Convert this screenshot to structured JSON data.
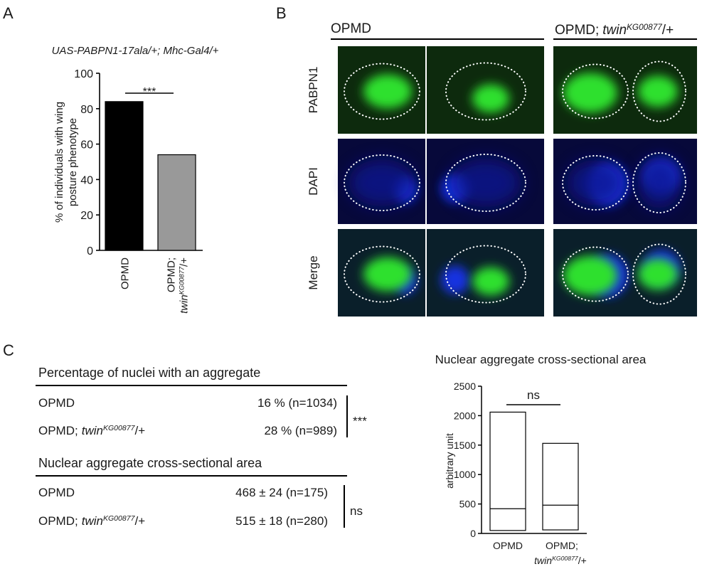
{
  "panels": {
    "a": "A",
    "b": "B",
    "c": "C"
  },
  "chart_data": [
    {
      "type": "bar",
      "title": "UAS-PABPN1-17ala/+; Mhc-Gal4/+",
      "y_label": [
        "% of individuals with wing",
        "posture phenotype"
      ],
      "categories": [
        [
          "OPMD"
        ],
        [
          "OPMD;",
          "twin",
          "KG00877",
          "/+"
        ]
      ],
      "values": [
        84,
        54
      ],
      "colors": [
        "#000000",
        "#999999"
      ],
      "ylim": [
        0,
        100
      ],
      "yticks": [
        0,
        20,
        40,
        60,
        80,
        100
      ],
      "significance": "***"
    },
    {
      "type": "box",
      "title": "Nuclear aggregate cross-sectional area",
      "y_label": "arbitrary unit",
      "categories": [
        [
          "OPMD"
        ],
        [
          "OPMD;",
          "twin",
          "KG00877",
          "/+"
        ]
      ],
      "min": [
        50,
        60
      ],
      "median": [
        420,
        480
      ],
      "max": [
        2060,
        1530
      ],
      "ylim": [
        0,
        2500
      ],
      "yticks": [
        0,
        500,
        1000,
        1500,
        2000,
        2500
      ],
      "significance": "ns"
    }
  ],
  "images": {
    "headers": [
      [
        "OPMD"
      ],
      [
        "OPMD;",
        "twin",
        "KG00877",
        "/+"
      ]
    ],
    "rows": [
      "PABPN1",
      "DAPI",
      "Merge"
    ]
  },
  "table": {
    "sections": [
      {
        "title": "Percentage of nuclei with an aggregate",
        "significance": "***",
        "rows": [
          {
            "genotype": [
              "OPMD"
            ],
            "value": "16 % (n=1034)"
          },
          {
            "genotype": [
              "OPMD;",
              "twin",
              "KG00877",
              "/+"
            ],
            "value": "28 % (n=989)"
          }
        ]
      },
      {
        "title": "Nuclear aggregate cross-sectional area",
        "significance": "ns",
        "rows": [
          {
            "genotype": [
              "OPMD"
            ],
            "value": "468 ± 24 (n=175)"
          },
          {
            "genotype": [
              "OPMD;",
              "twin",
              "KG00877",
              "/+"
            ],
            "value": "515 ± 18 (n=280)"
          }
        ]
      }
    ]
  }
}
